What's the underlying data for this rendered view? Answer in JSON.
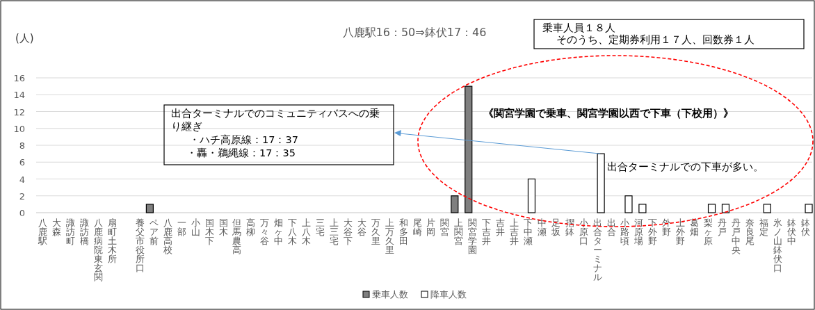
{
  "chart_data": {
    "type": "bar",
    "title": "八鹿駅16：50⇒鉢伏17：46",
    "ylabel": "(人)",
    "categories": [
      "八鹿駅",
      "大森",
      "諏訪町",
      "諏訪橋",
      "八鹿病院東玄関",
      "扇町土木所",
      null,
      "養父市役所口",
      "ペア前",
      "八鹿高校",
      "一部",
      "小山",
      "国木下",
      "国木",
      "但馬農高",
      "高柳",
      "万々谷",
      "畑ヶ中",
      "下八木",
      "上八木",
      "三宅",
      "上三宅",
      "大谷下",
      "大谷",
      "万久里",
      "上万久里",
      "和多田",
      "尾崎",
      "片岡",
      "関宮",
      "上関宮",
      "関宮学園",
      "下吉井",
      "吉井",
      "上吉井",
      "下中瀬",
      "中瀬",
      "足坂",
      "摺鉢",
      "小原口",
      "出合ターミナル",
      "出合",
      "小路頃",
      "河原場",
      "下外野",
      "外野",
      "上外野",
      "葛畑",
      "梨ヶ原",
      "丹戸",
      "丹戸中央",
      "奈良尾",
      "福定",
      "氷ノ山鉢伏口",
      "鉢伏中",
      "鉢伏"
    ],
    "series": [
      {
        "name": "乗車人数",
        "color": "#7f7f7f",
        "values": [
          0,
          0,
          0,
          0,
          0,
          0,
          0,
          0,
          1,
          0,
          0,
          0,
          0,
          0,
          0,
          0,
          0,
          0,
          0,
          0,
          0,
          0,
          0,
          0,
          0,
          0,
          0,
          0,
          0,
          0,
          2,
          15,
          0,
          0,
          0,
          0,
          0,
          0,
          0,
          0,
          0,
          0,
          0,
          0,
          0,
          0,
          0,
          0,
          0,
          0,
          0,
          0,
          0,
          0,
          0,
          0
        ]
      },
      {
        "name": "降車人数",
        "color": "#ffffff",
        "values": [
          0,
          0,
          0,
          0,
          0,
          0,
          0,
          0,
          0,
          0,
          0,
          0,
          0,
          0,
          0,
          0,
          0,
          0,
          0,
          0,
          0,
          0,
          0,
          0,
          0,
          0,
          0,
          0,
          0,
          0,
          0,
          0,
          0,
          0,
          0,
          4,
          0,
          0,
          0,
          0,
          7,
          0,
          2,
          1,
          0,
          0,
          0,
          0,
          1,
          1,
          0,
          0,
          1,
          0,
          0,
          1
        ]
      }
    ],
    "ylim": [
      0,
      16
    ],
    "yticks": [
      0,
      2,
      4,
      6,
      8,
      10,
      12,
      14,
      16
    ],
    "grid": "y",
    "legend": "bottom",
    "annotations": [
      "乗車人員１８人",
      "そのうち、定期券利用１７人、回数券１人",
      "出合ターミナルでのコミュニティバスへの乗り継ぎ",
      "・ハチ高原線：17：37",
      "・轟・鵜縄線：17：35",
      "《関宮学園で乗車、関宮学園以西で下車（下校用）》",
      "出合ターミナルでの下車が多い。"
    ]
  }
}
